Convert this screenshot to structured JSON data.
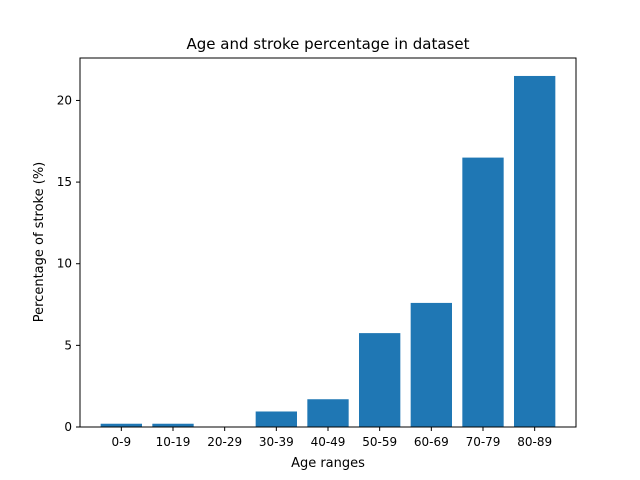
{
  "chart_data": {
    "type": "bar",
    "title": "Age and stroke percentage in dataset",
    "xlabel": "Age ranges",
    "ylabel": "Percentage of stroke (%)",
    "categories": [
      "0-9",
      "10-19",
      "20-29",
      "30-39",
      "40-49",
      "50-59",
      "60-69",
      "70-79",
      "80-89"
    ],
    "values": [
      0.2,
      0.2,
      0.0,
      0.95,
      1.7,
      5.75,
      7.6,
      16.5,
      21.5
    ],
    "ylim": [
      0,
      22.6
    ],
    "yticks": [
      0,
      5,
      10,
      15,
      20
    ],
    "grid": false,
    "bar_color": "#1f77b4"
  }
}
